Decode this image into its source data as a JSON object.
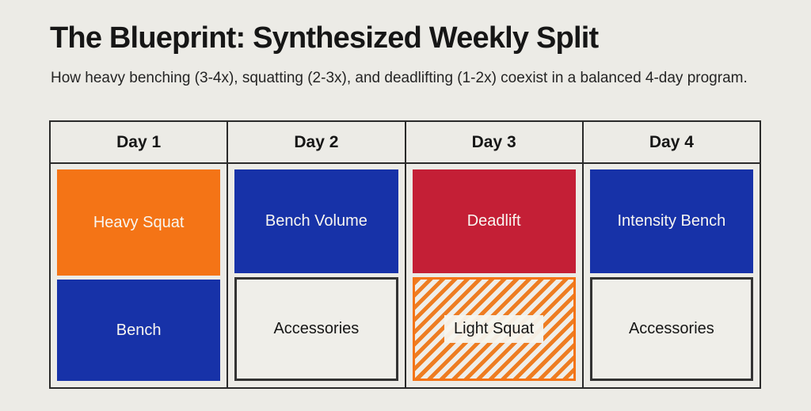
{
  "page": {
    "title": "The Blueprint: Synthesized Weekly Split",
    "subtitle": "How heavy benching (3-4x), squatting (2-3x), and deadlifting (1-2x) coexist in a balanced 4-day program."
  },
  "colors": {
    "orange": "#F47416",
    "orange_stripe": "#EE7D22",
    "blue": "#1732A8",
    "red": "#C41F36",
    "paper": "#ECEBE6",
    "paper_light": "#EFEEE9",
    "border_dark": "#2A2A2A",
    "text_dark": "#161616",
    "text_light": "#F8F6F1"
  },
  "table": {
    "days": [
      {
        "label": "Day 1",
        "blocks": [
          {
            "label": "Heavy Squat",
            "style": "orange"
          },
          {
            "label": "Bench",
            "style": "blue"
          }
        ]
      },
      {
        "label": "Day 2",
        "blocks": [
          {
            "label": "Bench Volume",
            "style": "blue"
          },
          {
            "label": "Accessories",
            "style": "outline"
          }
        ]
      },
      {
        "label": "Day 3",
        "blocks": [
          {
            "label": "Deadlift",
            "style": "red"
          },
          {
            "label": "Light Squat",
            "style": "hatched"
          }
        ]
      },
      {
        "label": "Day 4",
        "blocks": [
          {
            "label": "Intensity Bench",
            "style": "blue"
          },
          {
            "label": "Accessories",
            "style": "outline"
          }
        ]
      }
    ]
  }
}
